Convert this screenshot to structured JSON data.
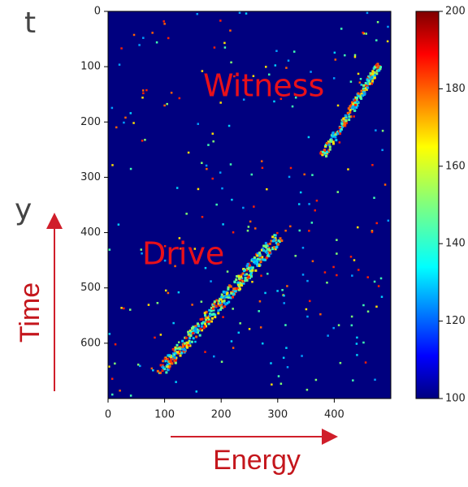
{
  "chart_data": {
    "type": "heatmap",
    "colormap": "jet",
    "xlim": [
      0,
      500
    ],
    "ylim": [
      700,
      0
    ],
    "xticks": [
      0,
      100,
      200,
      300,
      400
    ],
    "yticks": [
      0,
      100,
      200,
      300,
      400,
      500,
      600
    ],
    "colorbar": {
      "clim": [
        100,
        200
      ],
      "ticks": [
        100,
        120,
        140,
        160,
        180,
        200
      ]
    },
    "annotations": [
      "Witness",
      "Drive"
    ],
    "x_label": "Energy",
    "y_label": "Time",
    "cut_text": [
      "t",
      "y"
    ]
  }
}
